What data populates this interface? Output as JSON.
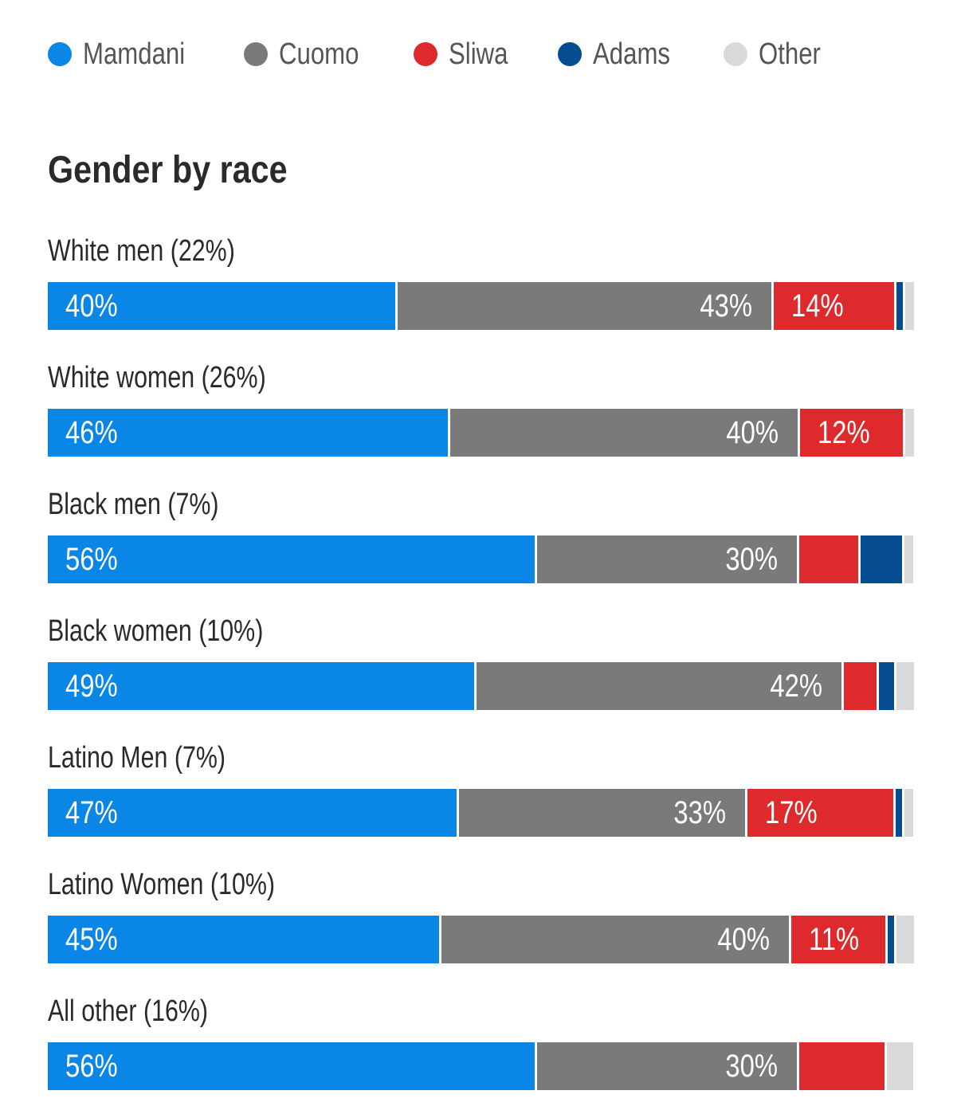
{
  "legend": [
    {
      "name": "Mamdani",
      "color": "#0a86e6"
    },
    {
      "name": "Cuomo",
      "color": "#7a7a7a"
    },
    {
      "name": "Sliwa",
      "color": "#de2a2c"
    },
    {
      "name": "Adams",
      "color": "#064c91"
    },
    {
      "name": "Other",
      "color": "#d9d9d9"
    }
  ],
  "chart_data": {
    "type": "bar",
    "orientation": "horizontal",
    "stacked": true,
    "title": "Gender by race",
    "categories": [
      "White men (22%)",
      "White women (26%)",
      "Black men (7%)",
      "Black women (10%)",
      "Latino Men (7%)",
      "Latino Women (10%)",
      "All other (16%)"
    ],
    "series": [
      {
        "name": "Mamdani",
        "values": [
          40,
          46,
          56,
          49,
          47,
          45,
          56
        ],
        "labels": [
          "40%",
          "46%",
          "56%",
          "49%",
          "47%",
          "45%",
          "56%"
        ]
      },
      {
        "name": "Cuomo",
        "values": [
          43,
          40,
          30,
          42,
          33,
          40,
          30
        ],
        "labels": [
          "43%",
          "40%",
          "30%",
          "42%",
          "33%",
          "40%",
          "30%"
        ]
      },
      {
        "name": "Sliwa",
        "values": [
          14,
          12,
          7,
          4,
          17,
          11,
          10
        ],
        "labels": [
          "14%",
          "12%",
          "",
          "",
          "17%",
          "11%",
          ""
        ]
      },
      {
        "name": "Adams",
        "values": [
          1,
          0,
          5,
          2,
          1,
          1,
          0
        ],
        "labels": [
          "",
          "",
          "",
          "",
          "",
          "",
          ""
        ]
      },
      {
        "name": "Other",
        "values": [
          1,
          1,
          1,
          2,
          1,
          2,
          3
        ],
        "labels": [
          "",
          "",
          "",
          "",
          "",
          "",
          ""
        ]
      }
    ],
    "xlim": [
      0,
      100
    ],
    "legend_position": "top-left",
    "grid": false
  }
}
